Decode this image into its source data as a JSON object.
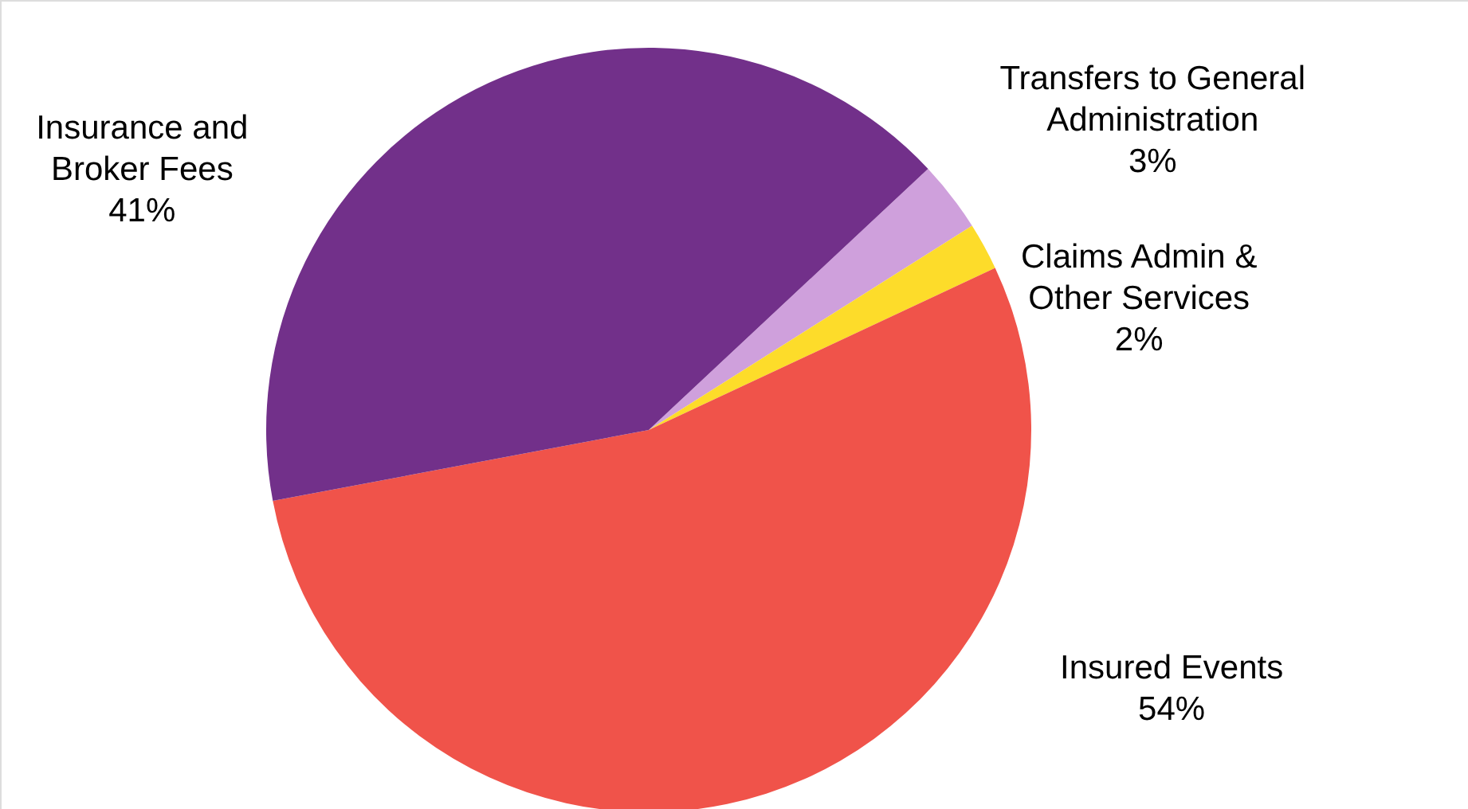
{
  "chart_data": {
    "type": "pie",
    "categories": [
      "Transfers to General\nAdministration",
      "Claims Admin &\nOther Services",
      "Insured  Events",
      "Insurance  and\nBroker Fees"
    ],
    "values": [
      3,
      2,
      54,
      41
    ],
    "colors": [
      "#cfa0dc",
      "#fddc2a",
      "#f0534a",
      "#72308a"
    ],
    "value_labels": [
      "3%",
      "2%",
      "54%",
      "41%"
    ]
  }
}
